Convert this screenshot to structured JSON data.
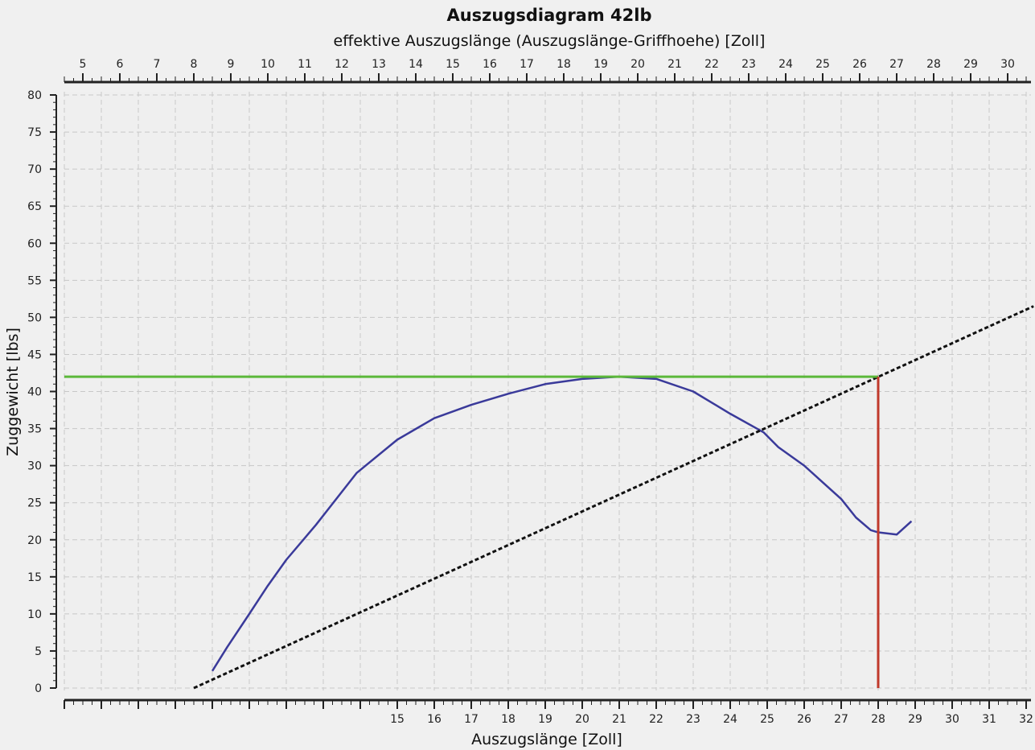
{
  "chart_data": {
    "type": "line",
    "title": "Auszugsdiagram 42lb",
    "xlabel": "Auszugslänge [Zoll]",
    "x2label": "effektive Auszugslänge (Auszugslänge-Griffhoehe) [Zoll]",
    "ylabel": "Zuggewicht [lbs]",
    "xlim": [
      6,
      32.1
    ],
    "x2lim": [
      4.5,
      30.6
    ],
    "ylim": [
      0,
      80
    ],
    "x_tick_labels": [
      15,
      16,
      17,
      18,
      19,
      20,
      21,
      22,
      23,
      24,
      25,
      26,
      27,
      28,
      29,
      30,
      31,
      32
    ],
    "x_major_ticks": [
      6,
      7,
      8,
      9,
      10,
      11,
      12,
      13,
      14,
      15,
      16,
      17,
      18,
      19,
      20,
      21,
      22,
      23,
      24,
      25,
      26,
      27,
      28,
      29,
      30,
      31,
      32
    ],
    "x2_tick_labels": [
      5,
      6,
      7,
      8,
      9,
      10,
      11,
      12,
      13,
      14,
      15,
      16,
      17,
      18,
      19,
      20,
      21,
      22,
      23,
      24,
      25,
      26,
      27,
      28,
      29,
      30
    ],
    "y_tick_labels": [
      0,
      5,
      10,
      15,
      20,
      25,
      30,
      35,
      40,
      45,
      50,
      55,
      60,
      65,
      70,
      75,
      80
    ],
    "grid": true,
    "series": [
      {
        "color": "#3a3a9a",
        "style": "solid",
        "x": [
          10.0,
          10.4,
          11.0,
          11.5,
          12.0,
          12.8,
          13.9,
          15.0,
          16.0,
          17.0,
          18.0,
          19.0,
          20.0,
          21.0,
          22.0,
          23.0,
          24.0,
          24.9,
          25.3,
          26.0,
          27.0,
          27.4,
          27.8,
          28.0,
          28.5,
          28.9
        ],
        "y": [
          2.3,
          5.5,
          10.0,
          13.8,
          17.3,
          22.0,
          29.0,
          33.5,
          36.4,
          38.2,
          39.7,
          41.0,
          41.7,
          42.0,
          41.7,
          40.0,
          37.0,
          34.5,
          32.5,
          30.0,
          25.5,
          23.0,
          21.3,
          21.0,
          20.7,
          22.5
        ]
      },
      {
        "color": "#111111",
        "style": "dotted",
        "x": [
          9.5,
          32.2
        ],
        "y": [
          0,
          51.5
        ]
      },
      {
        "color": "#5cb83a",
        "style": "solid",
        "x": [
          6,
          28
        ],
        "y": [
          42,
          42
        ]
      },
      {
        "color": "#c0392b",
        "style": "solid",
        "x": [
          28,
          28
        ],
        "y": [
          0,
          42
        ]
      }
    ]
  }
}
